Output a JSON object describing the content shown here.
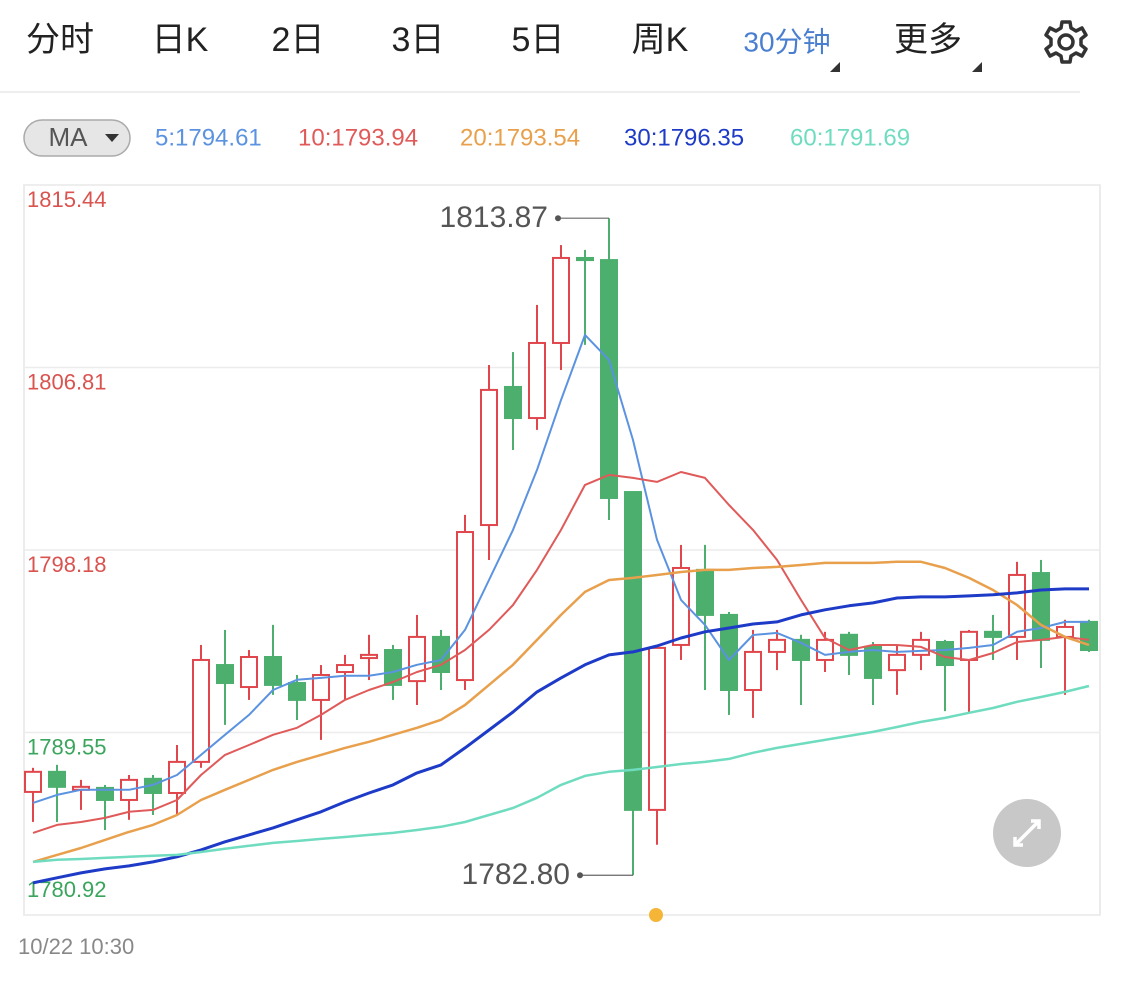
{
  "tabs": [
    "分时",
    "日K",
    "2日",
    "3日",
    "5日",
    "周K",
    "30分钟",
    "更多"
  ],
  "active_tab": 6,
  "chart_data": {
    "type": "candlestick",
    "indicator_button": "MA",
    "series": [
      {
        "name": "5:1794.61",
        "color": "#5b93e0",
        "width": 2,
        "values": [
          1786.22,
          1786.6,
          1786.84,
          1786.84,
          1786.84,
          1787.07,
          1787.54,
          1788.49,
          1789.44,
          1790.38,
          1791.56,
          1792.04,
          1792.13,
          1792.23,
          1792.23,
          1792.41,
          1792.75,
          1792.98,
          1794.4,
          1796.76,
          1799.13,
          1801.97,
          1805.27,
          1808.35,
          1807.17,
          1803.38,
          1798.66,
          1795.82,
          1794.64,
          1792.98,
          1794.16,
          1794.26,
          1793.79,
          1793.22,
          1793.36,
          1793.45,
          1793.36,
          1793.41,
          1793.45,
          1793.55,
          1793.69,
          1794.31,
          1794.49,
          1794.78,
          1794.78
        ]
      },
      {
        "name": "10:1793.94",
        "color": "#e05a5a",
        "width": 2,
        "values": [
          1784.8,
          1785.18,
          1785.32,
          1785.51,
          1785.8,
          1785.89,
          1786.36,
          1787.54,
          1788.49,
          1788.96,
          1789.44,
          1789.77,
          1790.38,
          1791.09,
          1791.56,
          1791.94,
          1792.41,
          1792.75,
          1793.45,
          1794.4,
          1795.58,
          1797.24,
          1799.13,
          1801.26,
          1801.73,
          1801.59,
          1801.4,
          1801.87,
          1801.59,
          1800.31,
          1799.13,
          1797.71,
          1795.82,
          1794.02,
          1793.45,
          1793.69,
          1793.69,
          1793.6,
          1793.12,
          1792.98,
          1793.31,
          1793.83,
          1793.93,
          1794.07,
          1793.93
        ]
      },
      {
        "name": "20:1793.54",
        "color": "#e8a04c",
        "width": 2.5,
        "values": [
          1783.43,
          1783.76,
          1784.09,
          1784.47,
          1784.85,
          1785.18,
          1785.65,
          1786.36,
          1786.84,
          1787.31,
          1787.78,
          1788.16,
          1788.49,
          1788.82,
          1789.11,
          1789.44,
          1789.77,
          1790.15,
          1790.85,
          1791.8,
          1792.75,
          1793.93,
          1795.11,
          1796.2,
          1796.76,
          1796.86,
          1797.0,
          1797.14,
          1797.24,
          1797.24,
          1797.33,
          1797.38,
          1797.47,
          1797.57,
          1797.57,
          1797.57,
          1797.62,
          1797.62,
          1797.33,
          1796.86,
          1796.29,
          1795.58,
          1794.64,
          1794.07,
          1793.69
        ]
      },
      {
        "name": "30:1796.35",
        "color": "#1e3bc8",
        "width": 3,
        "values": [
          1782.44,
          1782.68,
          1782.91,
          1783.1,
          1783.24,
          1783.43,
          1783.67,
          1784.0,
          1784.38,
          1784.71,
          1785.04,
          1785.42,
          1785.8,
          1786.27,
          1786.69,
          1787.07,
          1787.64,
          1788.02,
          1788.82,
          1789.67,
          1790.52,
          1791.47,
          1792.13,
          1792.75,
          1793.22,
          1793.36,
          1793.64,
          1794.02,
          1794.31,
          1794.49,
          1794.68,
          1794.78,
          1795.11,
          1795.35,
          1795.54,
          1795.68,
          1795.91,
          1795.96,
          1795.96,
          1796.01,
          1796.06,
          1796.15,
          1796.29,
          1796.34,
          1796.34
        ]
      },
      {
        "name": "60:1791.69",
        "color": "#6fdcc0",
        "width": 2.5,
        "values": [
          1783.43,
          1783.53,
          1783.57,
          1783.62,
          1783.67,
          1783.72,
          1783.76,
          1783.9,
          1784.05,
          1784.19,
          1784.33,
          1784.42,
          1784.52,
          1784.61,
          1784.71,
          1784.8,
          1784.94,
          1785.09,
          1785.32,
          1785.65,
          1785.98,
          1786.46,
          1787.07,
          1787.5,
          1787.69,
          1787.78,
          1787.92,
          1788.06,
          1788.16,
          1788.3,
          1788.59,
          1788.82,
          1789.01,
          1789.2,
          1789.39,
          1789.58,
          1789.81,
          1790.05,
          1790.24,
          1790.48,
          1790.71,
          1791.0,
          1791.23,
          1791.47,
          1791.75
        ]
      }
    ],
    "candles": {
      "up_color": "#e0474c",
      "down_color": "#4caf6e",
      "open": [
        1786.74,
        1787.69,
        1786.84,
        1786.93,
        1786.36,
        1787.36,
        1786.69,
        1788.16,
        1792.74,
        1791.7,
        1793.12,
        1791.89,
        1791.09,
        1792.41,
        1793.07,
        1793.45,
        1791.98,
        1794.07,
        1792.03,
        1799.36,
        1805.89,
        1804.42,
        1807.97,
        1811.99,
        1811.89,
        1800.92,
        1785.89,
        1793.69,
        1797.24,
        1795.11,
        1791.56,
        1793.36,
        1793.93,
        1792.98,
        1794.17,
        1793.6,
        1792.5,
        1793.22,
        1793.83,
        1792.98,
        1794.31,
        1794.07,
        1797.09,
        1794.07,
        1794.78
      ],
      "high": [
        1787.88,
        1788.02,
        1787.31,
        1787.07,
        1787.54,
        1787.54,
        1788.96,
        1793.69,
        1794.4,
        1793.45,
        1794.64,
        1792.27,
        1792.74,
        1793.22,
        1794.17,
        1793.69,
        1795.11,
        1794.4,
        1799.84,
        1806.93,
        1807.54,
        1809.77,
        1812.6,
        1812.37,
        1813.87,
        1800.92,
        1793.69,
        1798.42,
        1798.42,
        1795.25,
        1794.4,
        1794.4,
        1794.17,
        1794.31,
        1794.31,
        1793.83,
        1793.69,
        1794.31,
        1793.93,
        1794.4,
        1795.11,
        1797.62,
        1797.71,
        1794.88,
        1794.88
      ],
      "low": [
        1785.32,
        1785.32,
        1785.89,
        1784.94,
        1785.42,
        1785.65,
        1785.65,
        1787.88,
        1789.91,
        1791.09,
        1791.33,
        1790.14,
        1789.2,
        1791.09,
        1792.03,
        1791.09,
        1790.85,
        1791.56,
        1791.56,
        1797.71,
        1802.91,
        1803.86,
        1806.69,
        1807.88,
        1799.6,
        1782.8,
        1784.24,
        1792.98,
        1791.56,
        1790.38,
        1790.24,
        1792.5,
        1790.85,
        1792.41,
        1792.27,
        1790.85,
        1791.33,
        1792.5,
        1790.56,
        1790.47,
        1792.98,
        1792.98,
        1792.6,
        1791.33,
        1793.36
      ],
      "close": [
        1787.69,
        1786.98,
        1786.98,
        1786.36,
        1787.31,
        1786.69,
        1788.16,
        1792.98,
        1791.89,
        1793.12,
        1791.8,
        1791.09,
        1792.27,
        1792.74,
        1793.22,
        1791.8,
        1794.07,
        1792.41,
        1799.03,
        1805.75,
        1804.42,
        1807.97,
        1811.99,
        1811.89,
        1800.64,
        1785.89,
        1793.55,
        1797.33,
        1795.11,
        1791.56,
        1793.36,
        1793.93,
        1792.98,
        1793.93,
        1793.22,
        1792.13,
        1793.22,
        1793.93,
        1792.74,
        1794.31,
        1794.07,
        1797.0,
        1793.93,
        1794.54,
        1793.45
      ]
    },
    "ylim": [
      1780.92,
      1815.44
    ],
    "yticks": [
      1815.44,
      1806.81,
      1798.18,
      1789.55,
      1780.92
    ],
    "ytick_colors": [
      "#d9534f",
      "#d9534f",
      "#d9534f",
      "#3aa55c",
      "#3aa55c"
    ],
    "grid": true,
    "annotations": [
      1813.87,
      {
        "value": 1782.8,
        "label": "1782.80"
      }
    ],
    "start_label": "10/22 10:30"
  }
}
